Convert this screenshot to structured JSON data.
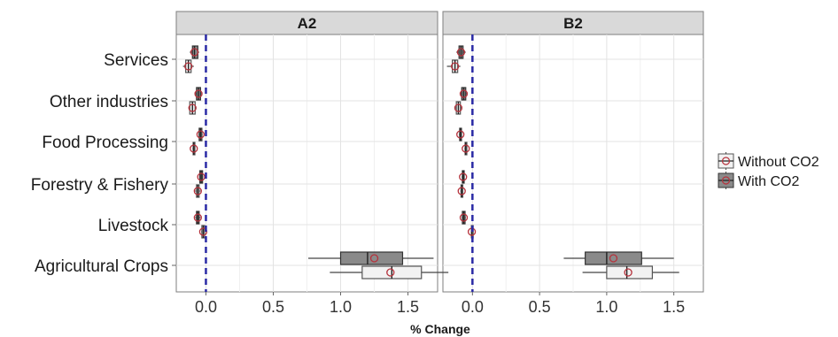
{
  "chart_data": {
    "type": "boxplot",
    "xlabel": "% Change",
    "xlim": [
      -0.22,
      1.72
    ],
    "x_ticks": [
      0.0,
      0.5,
      1.0,
      1.5
    ],
    "x_tick_labels": [
      "0.0",
      "0.5",
      "1.0",
      "1.5"
    ],
    "reference_line": 0.0,
    "grid": true,
    "legend_position": "right",
    "categories": [
      "Services",
      "Other industries",
      "Food Processing",
      "Forestry & Fishery",
      "Livestock",
      "Agricultural Crops"
    ],
    "series": [
      {
        "name": "Without CO2",
        "fill": "#f2f2f2"
      },
      {
        "name": "With CO2",
        "fill": "#8a8a8a"
      }
    ],
    "panels": [
      {
        "title": "A2",
        "boxes": [
          {
            "category": "Services",
            "series": "With CO2",
            "min": -0.12,
            "q1": -0.1,
            "median": -0.085,
            "q3": -0.06,
            "max": -0.05,
            "mean": -0.085
          },
          {
            "category": "Services",
            "series": "Without CO2",
            "min": -0.17,
            "q1": -0.15,
            "median": -0.13,
            "q3": -0.11,
            "max": -0.09,
            "mean": -0.13
          },
          {
            "category": "Other industries",
            "series": "With CO2",
            "min": -0.08,
            "q1": -0.07,
            "median": -0.055,
            "q3": -0.04,
            "max": -0.03,
            "mean": -0.055
          },
          {
            "category": "Other industries",
            "series": "Without CO2",
            "min": -0.13,
            "q1": -0.12,
            "median": -0.1,
            "q3": -0.08,
            "max": -0.07,
            "mean": -0.1
          },
          {
            "category": "Food Processing",
            "series": "With CO2",
            "min": -0.055,
            "q1": -0.05,
            "median": -0.04,
            "q3": -0.03,
            "max": -0.025,
            "mean": -0.04
          },
          {
            "category": "Food Processing",
            "series": "Without CO2",
            "min": -0.1,
            "q1": -0.095,
            "median": -0.09,
            "q3": -0.085,
            "max": -0.08,
            "mean": -0.09
          },
          {
            "category": "Forestry & Fishery",
            "series": "With CO2",
            "min": -0.05,
            "q1": -0.045,
            "median": -0.035,
            "q3": -0.025,
            "max": -0.02,
            "mean": -0.035
          },
          {
            "category": "Forestry & Fishery",
            "series": "Without CO2",
            "min": -0.08,
            "q1": -0.07,
            "median": -0.06,
            "q3": -0.05,
            "max": -0.04,
            "mean": -0.06
          },
          {
            "category": "Livestock",
            "series": "With CO2",
            "min": -0.08,
            "q1": -0.07,
            "median": -0.06,
            "q3": -0.05,
            "max": -0.04,
            "mean": -0.06
          },
          {
            "category": "Livestock",
            "series": "Without CO2",
            "min": -0.035,
            "q1": -0.03,
            "median": -0.02,
            "q3": -0.01,
            "max": -0.005,
            "mean": -0.02
          },
          {
            "category": "Agricultural Crops",
            "series": "With CO2",
            "min": 0.76,
            "q1": 1.0,
            "median": 1.2,
            "q3": 1.46,
            "max": 1.69,
            "mean": 1.25
          },
          {
            "category": "Agricultural Crops",
            "series": "Without CO2",
            "min": 0.92,
            "q1": 1.16,
            "median": 1.38,
            "q3": 1.6,
            "max": 1.8,
            "mean": 1.37
          }
        ]
      },
      {
        "title": "B2",
        "boxes": [
          {
            "category": "Services",
            "series": "With CO2",
            "min": -0.12,
            "q1": -0.1,
            "median": -0.085,
            "q3": -0.07,
            "max": -0.05,
            "mean": -0.085
          },
          {
            "category": "Services",
            "series": "Without CO2",
            "min": -0.19,
            "q1": -0.15,
            "median": -0.13,
            "q3": -0.11,
            "max": -0.09,
            "mean": -0.13
          },
          {
            "category": "Other industries",
            "series": "With CO2",
            "min": -0.09,
            "q1": -0.08,
            "median": -0.065,
            "q3": -0.05,
            "max": -0.04,
            "mean": -0.065
          },
          {
            "category": "Other industries",
            "series": "Without CO2",
            "min": -0.13,
            "q1": -0.12,
            "median": -0.105,
            "q3": -0.09,
            "max": -0.08,
            "mean": -0.105
          },
          {
            "category": "Food Processing",
            "series": "With CO2",
            "min": -0.1,
            "q1": -0.095,
            "median": -0.09,
            "q3": -0.085,
            "max": -0.08,
            "mean": -0.09
          },
          {
            "category": "Food Processing",
            "series": "Without CO2",
            "min": -0.06,
            "q1": -0.055,
            "median": -0.05,
            "q3": -0.045,
            "max": -0.04,
            "mean": -0.05
          },
          {
            "category": "Forestry & Fishery",
            "series": "With CO2",
            "min": -0.08,
            "q1": -0.075,
            "median": -0.07,
            "q3": -0.065,
            "max": -0.06,
            "mean": -0.07
          },
          {
            "category": "Forestry & Fishery",
            "series": "Without CO2",
            "min": -0.09,
            "q1": -0.085,
            "median": -0.08,
            "q3": -0.075,
            "max": -0.07,
            "mean": -0.08
          },
          {
            "category": "Livestock",
            "series": "With CO2",
            "min": -0.08,
            "q1": -0.075,
            "median": -0.065,
            "q3": -0.055,
            "max": -0.05,
            "mean": -0.065
          },
          {
            "category": "Livestock",
            "series": "Without CO2",
            "min": -0.01,
            "q1": -0.008,
            "median": -0.004,
            "q3": -0.001,
            "max": 0.0,
            "mean": -0.005
          },
          {
            "category": "Agricultural Crops",
            "series": "With CO2",
            "min": 0.68,
            "q1": 0.84,
            "median": 1.0,
            "q3": 1.26,
            "max": 1.5,
            "mean": 1.05
          },
          {
            "category": "Agricultural Crops",
            "series": "Without CO2",
            "min": 0.82,
            "q1": 1.0,
            "median": 1.15,
            "q3": 1.34,
            "max": 1.54,
            "mean": 1.16
          }
        ]
      }
    ]
  }
}
